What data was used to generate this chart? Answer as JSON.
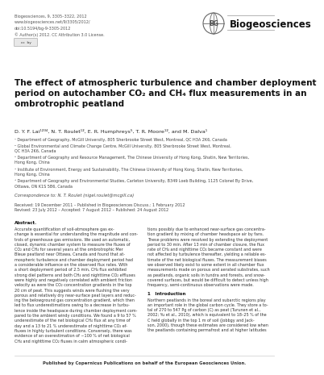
{
  "bg_color": "#ffffff",
  "header_lines": [
    "Biogeosciences, 9, 3305–3322, 2012",
    "www.biogeosciences.net/9/3305/2012/",
    "doi:10.5194/bg-9-3305-2012",
    "© Author(s) 2012. CC Attribution 3.0 License."
  ],
  "journal_name": "Biogeosciences",
  "title_text": "The effect of atmospheric turbulence and chamber deployment\nperiod on autochamber CO₂ and CH₄ flux measurements in an\nombrotrophic peatland",
  "authors": "D. Y. F. Lai¹²³⁴, N. T. Roulet¹², E. R. Humphreys⁵, T. R. Moore¹², and M. Dalva¹",
  "affils": [
    "¹ Department of Geography, McGill University, 805 Sherbrooke Street West, Montreal, QC H3A 2K6, Canada",
    "² Global Environmental and Climate Change Centre, McGill University, 805 Sherbrooke Street West, Montreal,\nQC H3A 2K6, Canada",
    "³ Department of Geography and Resource Management, The Chinese University of Hong Kong, Shatin, New Territories,\nHong Kong, China",
    "⁴ Institute of Environment, Energy and Sustainability, The Chinese University of Hong Kong, Shatin, New Territories,\nHong Kong, China",
    "⁵ Department of Geography and Environmental Studies, Carleton University, B349 Loeb Building, 1125 Colonel By Drive,\nOttawa, ON K1S 5B6, Canada"
  ],
  "correspondence": "Correspondence to: N. T. Roulet (nigel.roulet@mcgill.ca)",
  "dates": "Received: 19 December 2011 – Published in Biogeosciences Discuss.: 1 February 2012\nRevised: 23 July 2012 – Accepted: 7 August 2012 – Published: 24 August 2012",
  "abstract_label": "Abstract.",
  "col1_lines": [
    "Accurate quantification of soil-atmosphere gas ex-",
    "change is essential for understanding the magnitude and con-",
    "trols of greenhouse gas emissions. We used an automatic,",
    "closed, dynamic chamber system to measure the fluxes of",
    "CO₂ and CH₄ for several years at the ombrotrophic Mer",
    "Bleue peatland near Ottawa, Canada and found that at-",
    "mospheric turbulence and chamber deployment period had",
    "a considerable influence on the observed flux rates. With",
    "a short deployment period of 2.5 min, CH₄ flux exhibited",
    "strong diel patterns and both CH₄ and nighttime CO₂ effluxes",
    "were highly and negatively correlated with ambient friction",
    "velocity as were the CO₂ concentration gradients in the top",
    "20 cm of peat. This suggests winds were flushing the very",
    "porous and relatively dry near-surface peat layers and reduc-",
    "ing the belowground gas concentration gradient, which then",
    "led to flux underestimations owing to a decrease in turbu-",
    "lence inside the headspace during chamber deployment com-",
    "pared to the ambient windy conditions. We found a 9 to 57 %",
    "underestimate of the net biological CH₄ flux at any time of",
    "day and a 13 to 21 % underestimate of nighttime CO₂ ef-",
    "fluxes in highly turbulent conditions. Conversely, there was",
    "evidence of an overestimation of ~100 % of net biological",
    "CH₄ and nighttime CO₂ fluxes in calm atmospheric condi-"
  ],
  "col2_lines": [
    "tions possibly due to enhanced near-surface gas concentra-",
    "tion gradient by mixing of chamber headspace air by fans.",
    "These problems were resolved by extending the deployment",
    "period to 30 min. After 13 min of chamber closure, the flux",
    "rate of CH₄ and nighttime CO₂ became constant and were",
    "not affected by turbulence thereafter, yielding a reliable es-",
    "timate of the net biological fluxes. The measurement biases",
    "we observed likely exist to some extent in all chamber flux",
    "measurements made on porous and aerated substrates, such",
    "as peatlands, organic soils in tundra and forests, and snow-",
    "covered surfaces, but would be difficult to detect unless high",
    "frequency, semi-continuous observations were made."
  ],
  "intro_heading": "1   Introduction",
  "intro_lines": [
    "Northern peatlands in the boreal and subarctic regions play",
    "an important role in the global carbon cycle. They store a to-",
    "tal of 270 to 547 Pg of carbon (C) as peat (Turunen et al.,",
    "2002; Yu et al., 2010), which is equivalent to 18–25 % of the",
    "C held globally in the top 1 m of soil (Jobbgy and Jack-",
    "son, 2000), though these estimates are considered low when",
    "the peatlands containing permafrost and at higher latitudes"
  ],
  "footer": "Published by Copernicus Publications on behalf of the European Geosciences Union."
}
